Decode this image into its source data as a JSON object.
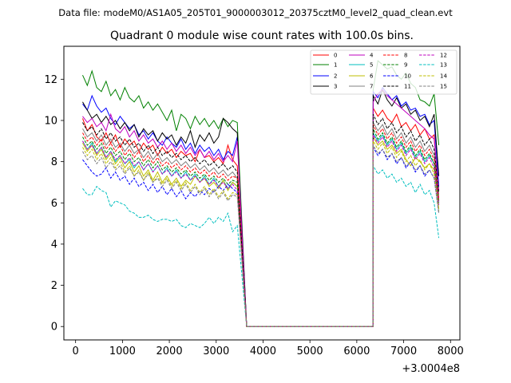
{
  "header": {
    "data_file": "Data file: modeM0/AS1A05_205T01_9000003012_20375cztM0_level2_quad_clean.evt"
  },
  "chart_data": {
    "type": "line",
    "title": "Quadrant 0 module wise count rates with 100.0s bins.",
    "xlabel": "",
    "ylabel": "",
    "x_offset_label": "+3.0004e8",
    "xlim": [
      -250,
      8200
    ],
    "ylim": [
      -0.65,
      13.6
    ],
    "xticks": [
      0,
      1000,
      2000,
      3000,
      4000,
      5000,
      6000,
      7000,
      8000
    ],
    "yticks": [
      0,
      2,
      4,
      6,
      8,
      10,
      12
    ],
    "grid": false,
    "legend_position": "top-right",
    "time_segments": [
      {
        "x_start": 150,
        "count": 34,
        "step": 100
      },
      {
        "x_start": 6350,
        "count": 15,
        "step": 100
      }
    ],
    "gap_x": [
      3650,
      6350
    ],
    "gap_value": 0,
    "series": [
      {
        "name": "0",
        "color": "#ff0000",
        "dash": "solid",
        "seg1": [
          10.1,
          9.5,
          9.8,
          9.2,
          9.0,
          9.4,
          8.9,
          9.3,
          8.7,
          9.1,
          8.8,
          9.0,
          8.5,
          8.9,
          8.6,
          8.8,
          8.3,
          8.7,
          8.4,
          8.6,
          8.2,
          8.5,
          8.3,
          8.4,
          8.0,
          8.6,
          8.2,
          8.3,
          8.0,
          8.2,
          7.9,
          8.8,
          8.1,
          7.8
        ],
        "seg2": [
          10.6,
          10.2,
          10.5,
          10.1,
          9.9,
          10.3,
          9.7,
          9.9,
          9.5,
          9.8,
          9.3,
          9.6,
          9.1,
          9.3,
          6.1
        ]
      },
      {
        "name": "1",
        "color": "#008000",
        "dash": "solid",
        "seg1": [
          12.2,
          11.7,
          12.4,
          11.6,
          11.4,
          11.9,
          11.2,
          11.5,
          11.0,
          11.6,
          11.1,
          10.9,
          11.2,
          10.6,
          10.9,
          10.5,
          10.8,
          10.4,
          10.0,
          10.5,
          9.5,
          10.3,
          10.1,
          9.6,
          10.2,
          9.8,
          10.1,
          9.7,
          10.0,
          9.6,
          10.1,
          9.7,
          10.0,
          9.9
        ],
        "seg2": [
          11.5,
          12.9,
          12.7,
          12.5,
          12.6,
          12.2,
          12.0,
          12.3,
          11.8,
          11.6,
          11.0,
          10.9,
          10.7,
          11.3,
          8.8
        ]
      },
      {
        "name": "2",
        "color": "#0000ff",
        "dash": "solid",
        "seg1": [
          10.8,
          10.5,
          11.2,
          10.7,
          10.4,
          10.6,
          10.1,
          9.8,
          10.2,
          9.9,
          9.6,
          9.8,
          9.3,
          9.5,
          9.1,
          9.4,
          9.0,
          8.8,
          9.2,
          8.9,
          8.7,
          9.1,
          8.6,
          8.9,
          8.4,
          8.8,
          8.5,
          8.7,
          8.3,
          8.6,
          8.1,
          8.5,
          8.3,
          9.2
        ],
        "seg2": [
          11.4,
          11.1,
          11.6,
          11.3,
          11.0,
          11.2,
          10.7,
          10.9,
          10.5,
          10.6,
          10.2,
          10.3,
          9.8,
          10.0,
          6.8
        ]
      },
      {
        "name": "3",
        "color": "#000000",
        "dash": "solid",
        "seg1": [
          10.9,
          10.5,
          10.1,
          10.3,
          9.9,
          10.2,
          9.8,
          10.0,
          9.6,
          9.9,
          9.5,
          9.8,
          9.2,
          9.6,
          9.3,
          9.5,
          9.0,
          9.4,
          9.1,
          9.3,
          8.8,
          9.2,
          8.9,
          9.5,
          8.7,
          9.3,
          9.0,
          9.4,
          8.9,
          9.2,
          10.1,
          9.9,
          9.6,
          9.4
        ],
        "seg2": [
          11.2,
          10.8,
          11.5,
          11.0,
          10.7,
          11.1,
          10.6,
          10.8,
          10.3,
          10.5,
          10.0,
          10.2,
          9.7,
          10.3,
          7.3
        ]
      },
      {
        "name": "4",
        "color": "#bf00bf",
        "dash": "solid",
        "seg1": [
          10.2,
          9.9,
          10.1,
          9.7,
          9.9,
          9.5,
          10.3,
          9.6,
          9.4,
          9.7,
          9.2,
          9.5,
          9.0,
          9.3,
          8.9,
          9.1,
          8.7,
          9.0,
          8.6,
          8.9,
          8.5,
          8.8,
          8.4,
          8.7,
          8.3,
          8.6,
          8.2,
          8.5,
          8.1,
          8.4,
          8.0,
          8.3,
          8.0,
          9.0
        ],
        "seg2": [
          10.9,
          11.3,
          11.5,
          11.2,
          11.0,
          10.8,
          10.6,
          10.4,
          10.2,
          10.0,
          9.8,
          9.6,
          9.3,
          9.1,
          6.6
        ]
      },
      {
        "name": "5",
        "color": "#00bfbf",
        "dash": "solid",
        "seg1": [
          9.0,
          8.6,
          8.9,
          8.4,
          8.7,
          8.2,
          8.5,
          8.0,
          8.3,
          7.9,
          8.1,
          7.7,
          8.0,
          7.6,
          7.9,
          7.5,
          7.8,
          7.4,
          7.7,
          7.3,
          7.6,
          7.2,
          7.5,
          7.1,
          7.4,
          7.0,
          7.3,
          6.9,
          7.2,
          6.8,
          7.1,
          6.7,
          7.0,
          6.8
        ],
        "seg2": [
          9.4,
          9.0,
          9.3,
          8.8,
          9.1,
          8.6,
          8.9,
          8.4,
          8.7,
          8.2,
          8.5,
          8.0,
          8.3,
          7.9,
          6.0
        ]
      },
      {
        "name": "6",
        "color": "#bfbf00",
        "dash": "solid",
        "seg1": [
          8.9,
          8.5,
          8.8,
          8.3,
          8.6,
          8.1,
          8.4,
          7.9,
          8.2,
          7.7,
          8.0,
          7.5,
          7.8,
          7.3,
          7.6,
          7.1,
          7.5,
          7.0,
          7.3,
          6.9,
          7.2,
          6.8,
          7.1,
          6.9,
          7.3,
          7.0,
          7.2,
          6.8,
          7.0,
          6.7,
          7.1,
          6.6,
          7.0,
          6.8
        ],
        "seg2": [
          9.2,
          8.8,
          9.0,
          8.6,
          8.8,
          8.4,
          8.6,
          8.1,
          7.8,
          8.2,
          8.0,
          7.7,
          7.9,
          7.6,
          5.7
        ]
      },
      {
        "name": "7",
        "color": "#808080",
        "dash": "solid",
        "seg1": [
          9.6,
          9.2,
          9.4,
          9.0,
          9.3,
          8.8,
          9.1,
          8.7,
          8.9,
          8.5,
          8.8,
          8.4,
          8.6,
          8.2,
          8.5,
          8.1,
          8.4,
          8.0,
          8.2,
          7.9,
          8.1,
          7.8,
          8.0,
          7.7,
          7.9,
          7.6,
          7.8,
          7.5,
          7.7,
          7.4,
          7.6,
          7.3,
          7.5,
          7.2
        ],
        "seg2": [
          9.9,
          9.5,
          9.8,
          9.3,
          9.6,
          9.1,
          9.4,
          8.9,
          9.2,
          8.7,
          9.0,
          8.5,
          8.8,
          8.3,
          6.4
        ]
      },
      {
        "name": "8",
        "color": "#ff0000",
        "dash": "dashed",
        "seg1": [
          9.4,
          9.0,
          9.2,
          8.8,
          9.1,
          8.6,
          8.9,
          8.5,
          8.8,
          8.3,
          8.6,
          8.2,
          8.5,
          8.0,
          8.3,
          7.9,
          8.2,
          7.8,
          8.0,
          7.7,
          7.9,
          7.6,
          7.8,
          7.5,
          7.7,
          7.4,
          7.6,
          7.3,
          7.5,
          7.2,
          7.4,
          7.1,
          7.3,
          7.2
        ],
        "seg2": [
          9.8,
          9.3,
          9.6,
          9.1,
          9.4,
          8.9,
          9.2,
          8.7,
          9.0,
          8.5,
          8.8,
          8.3,
          8.6,
          8.1,
          6.2
        ]
      },
      {
        "name": "9",
        "color": "#008000",
        "dash": "dashed",
        "seg1": [
          9.2,
          8.8,
          9.0,
          8.6,
          8.9,
          8.4,
          8.7,
          8.3,
          8.5,
          8.1,
          8.4,
          8.0,
          8.2,
          7.8,
          8.1,
          7.7,
          8.0,
          7.6,
          7.8,
          7.5,
          7.7,
          7.4,
          7.6,
          7.3,
          7.5,
          7.2,
          7.4,
          7.1,
          7.3,
          7.0,
          7.2,
          6.9,
          7.1,
          7.0
        ],
        "seg2": [
          9.6,
          9.1,
          9.4,
          8.9,
          9.2,
          8.7,
          9.0,
          8.5,
          8.8,
          8.3,
          8.6,
          8.1,
          8.4,
          7.9,
          6.0
        ]
      },
      {
        "name": "10",
        "color": "#0000ff",
        "dash": "dashed",
        "seg1": [
          8.1,
          7.8,
          7.5,
          7.3,
          7.4,
          7.7,
          7.2,
          7.5,
          7.1,
          7.3,
          6.9,
          7.2,
          6.8,
          7.0,
          6.6,
          6.9,
          6.5,
          6.8,
          6.4,
          6.7,
          6.3,
          6.6,
          6.2,
          6.5,
          6.3,
          6.6,
          6.4,
          6.7,
          6.5,
          6.8,
          6.6,
          6.9,
          6.7,
          6.5
        ],
        "seg2": [
          8.7,
          8.3,
          8.6,
          8.1,
          8.4,
          7.9,
          8.2,
          7.7,
          8.0,
          7.5,
          7.8,
          7.3,
          7.6,
          7.2,
          5.5
        ]
      },
      {
        "name": "11",
        "color": "#000000",
        "dash": "dashed",
        "seg1": [
          9.9,
          9.5,
          9.7,
          9.3,
          9.6,
          9.1,
          9.4,
          9.0,
          9.2,
          8.8,
          9.1,
          8.7,
          8.9,
          8.5,
          8.8,
          8.4,
          8.7,
          8.3,
          8.5,
          8.2,
          8.4,
          8.1,
          8.3,
          8.0,
          8.2,
          7.9,
          8.1,
          7.8,
          8.0,
          7.7,
          7.9,
          7.6,
          7.8,
          7.5
        ],
        "seg2": [
          10.3,
          9.8,
          10.1,
          9.6,
          9.9,
          9.4,
          9.7,
          9.2,
          9.5,
          9.0,
          9.3,
          8.8,
          9.1,
          8.6,
          6.5
        ]
      },
      {
        "name": "12",
        "color": "#bf00bf",
        "dash": "dashed",
        "seg1": [
          9.0,
          8.6,
          8.8,
          8.4,
          8.7,
          8.2,
          8.5,
          8.1,
          8.3,
          7.9,
          8.2,
          7.8,
          8.0,
          7.6,
          7.9,
          7.5,
          7.8,
          7.4,
          7.6,
          7.3,
          7.5,
          7.2,
          7.4,
          7.1,
          7.3,
          7.0,
          7.2,
          6.9,
          7.1,
          6.8,
          7.0,
          6.7,
          6.9,
          6.6
        ],
        "seg2": [
          9.3,
          8.9,
          9.2,
          8.7,
          9.0,
          8.5,
          8.8,
          8.3,
          8.6,
          8.1,
          8.4,
          7.9,
          8.2,
          7.7,
          5.9
        ]
      },
      {
        "name": "13",
        "color": "#00bfbf",
        "dash": "dashed",
        "seg1": [
          6.7,
          6.4,
          6.4,
          6.8,
          6.6,
          6.5,
          5.8,
          6.1,
          6.0,
          5.9,
          5.6,
          5.5,
          5.3,
          5.3,
          5.4,
          5.2,
          5.1,
          5.2,
          5.2,
          5.1,
          5.2,
          4.9,
          4.8,
          5.0,
          4.9,
          4.8,
          5.0,
          5.3,
          5.0,
          5.3,
          5.1,
          5.5,
          4.6,
          4.9
        ],
        "seg2": [
          7.8,
          7.4,
          7.6,
          7.2,
          7.4,
          7.0,
          7.2,
          6.8,
          7.0,
          6.5,
          6.9,
          6.4,
          6.6,
          6.0,
          4.3
        ]
      },
      {
        "name": "14",
        "color": "#bfbf00",
        "dash": "dashed",
        "seg1": [
          8.7,
          8.3,
          8.6,
          8.1,
          8.4,
          7.9,
          8.2,
          7.7,
          8.0,
          7.5,
          7.8,
          7.3,
          7.6,
          7.1,
          7.5,
          7.0,
          7.3,
          6.9,
          7.2,
          6.8,
          7.1,
          6.7,
          7.0,
          6.6,
          6.9,
          6.5,
          6.8,
          6.4,
          6.7,
          6.3,
          6.6,
          6.2,
          6.5,
          6.4
        ],
        "seg2": [
          9.0,
          8.6,
          8.9,
          8.4,
          8.7,
          8.2,
          8.5,
          8.0,
          8.3,
          7.8,
          8.1,
          7.6,
          7.9,
          7.4,
          5.6
        ]
      },
      {
        "name": "15",
        "color": "#808080",
        "dash": "dashed",
        "seg1": [
          8.5,
          8.1,
          8.3,
          7.9,
          8.2,
          7.7,
          8.0,
          7.6,
          7.8,
          7.4,
          7.7,
          7.3,
          7.5,
          7.1,
          7.4,
          7.0,
          7.2,
          6.8,
          7.1,
          6.7,
          7.0,
          6.6,
          6.9,
          6.5,
          6.8,
          6.4,
          6.7,
          6.3,
          6.6,
          6.2,
          6.5,
          6.1,
          6.4,
          6.3
        ],
        "seg2": [
          8.8,
          8.4,
          8.6,
          8.2,
          8.4,
          8.0,
          8.2,
          7.8,
          8.0,
          7.6,
          7.8,
          7.4,
          7.6,
          7.2,
          5.5
        ]
      }
    ]
  }
}
